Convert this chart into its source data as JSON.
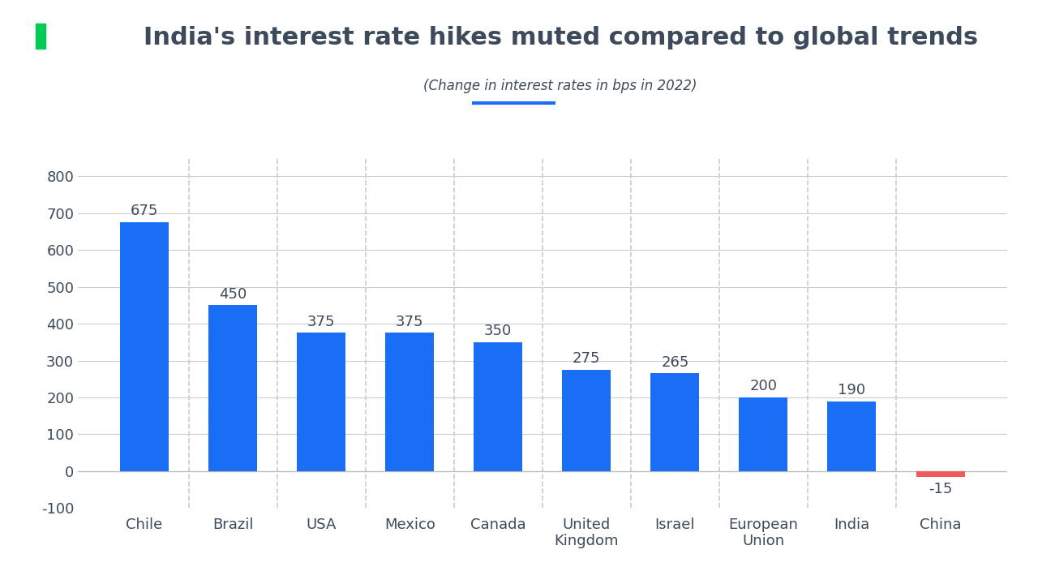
{
  "title": "India's interest rate hikes muted compared to global trends",
  "subtitle": "(Change in interest rates in bps in 2022)",
  "title_color": "#3d4a5c",
  "subtitle_color": "#3d4a5c",
  "categories": [
    "Chile",
    "Brazil",
    "USA",
    "Mexico",
    "Canada",
    "United\nKingdom",
    "Israel",
    "European\nUnion",
    "India",
    "China"
  ],
  "values": [
    675,
    450,
    375,
    375,
    350,
    275,
    265,
    200,
    190,
    -15
  ],
  "bar_colors": [
    "#1a6ef5",
    "#1a6ef5",
    "#1a6ef5",
    "#1a6ef5",
    "#1a6ef5",
    "#1a6ef5",
    "#1a6ef5",
    "#1a6ef5",
    "#1a6ef5",
    "#f05a5a"
  ],
  "ylim": [
    -100,
    850
  ],
  "yticks": [
    -100,
    0,
    100,
    200,
    300,
    400,
    500,
    600,
    700,
    800
  ],
  "background_color": "#ffffff",
  "grid_color": "#cccccc",
  "bar_label_color": "#3d4a5c",
  "subtitle_underline_color": "#1a6ef5",
  "logo_bg_color": "#1a6ef5",
  "logo_green_color": "#00cc55",
  "title_fontsize": 22,
  "subtitle_fontsize": 12,
  "tick_fontsize": 13,
  "label_fontsize": 13
}
